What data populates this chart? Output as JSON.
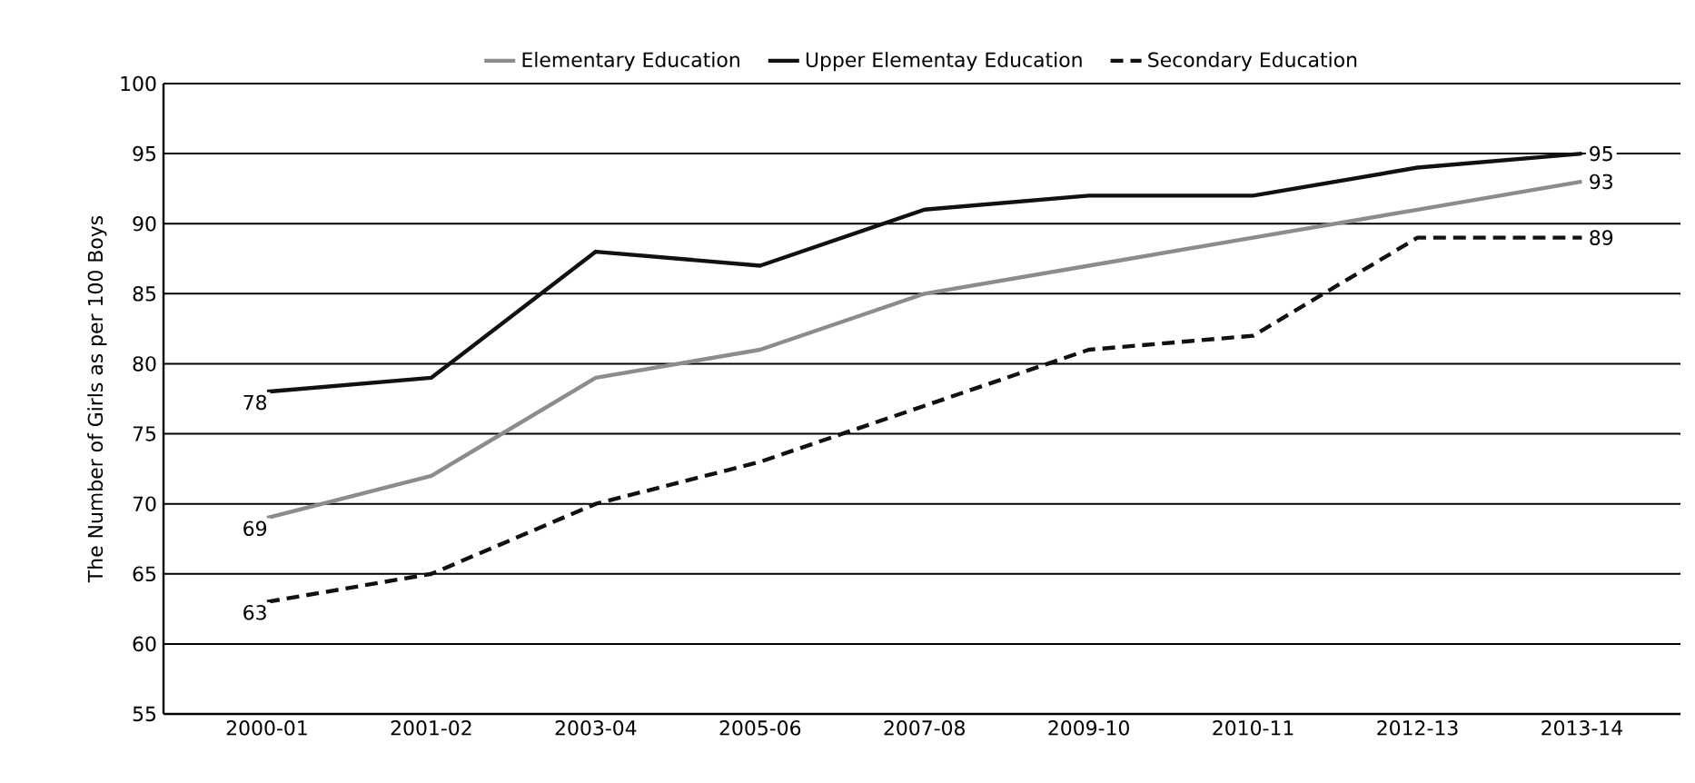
{
  "chart_data": {
    "type": "line",
    "ylabel": "The Number of Girls as per 100 Boys",
    "categories": [
      "2000-01",
      "2001-02",
      "2003-04",
      "2005-06",
      "2007-08",
      "2009-10",
      "2010-11",
      "2012-13",
      "2013-14"
    ],
    "series": [
      {
        "name": "Elementary Education",
        "color": "#8c8c8c",
        "line_style": "solid",
        "values": [
          69,
          72,
          79,
          81,
          85,
          87,
          89,
          91,
          93
        ],
        "value_labels": [
          "69",
          null,
          null,
          null,
          null,
          null,
          null,
          null,
          "93"
        ]
      },
      {
        "name": "Upper Elementay Education",
        "color": "#111111",
        "line_style": "solid",
        "values": [
          78,
          79,
          88,
          87,
          91,
          92,
          92,
          94,
          95
        ],
        "value_labels": [
          "78",
          null,
          null,
          null,
          null,
          null,
          null,
          null,
          "95"
        ]
      },
      {
        "name": "Secondary Education",
        "color": "#111111",
        "line_style": "dashed",
        "values": [
          63,
          65,
          70,
          73,
          77,
          81,
          82,
          89,
          89
        ],
        "value_labels": [
          "63",
          null,
          null,
          null,
          null,
          null,
          null,
          null,
          "89"
        ]
      }
    ],
    "ylim": [
      55,
      100
    ],
    "yticks": [
      55,
      60,
      65,
      70,
      75,
      80,
      85,
      90,
      95,
      100
    ],
    "grid": "y",
    "legend": "top",
    "marker": "none"
  }
}
